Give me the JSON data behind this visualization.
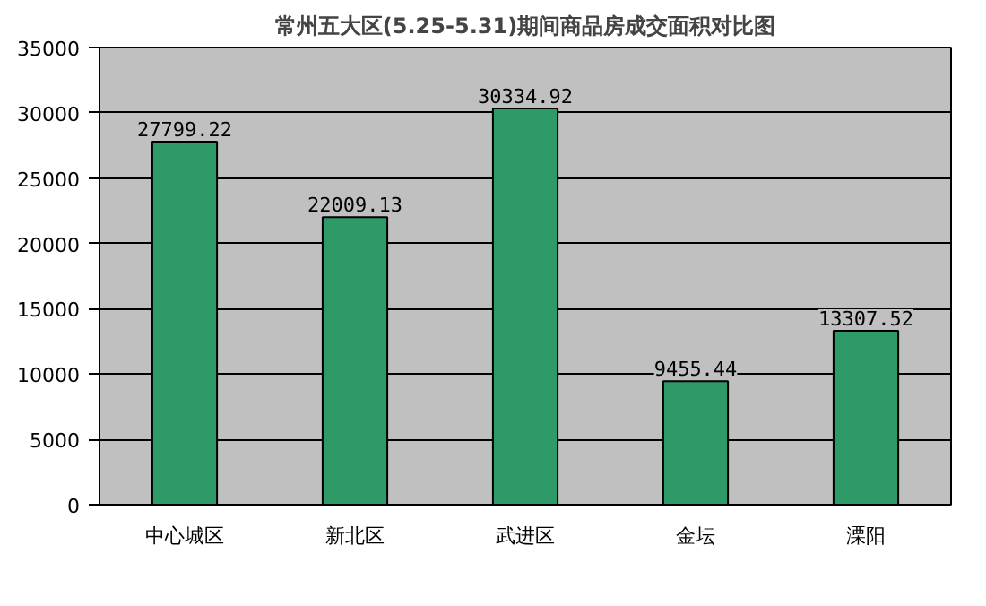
{
  "chart_data": {
    "type": "bar",
    "title": "常州五大区(5.25-5.31)期间商品房成交面积对比图",
    "categories": [
      "中心城区",
      "新北区",
      "武进区",
      "金坛",
      "溧阳"
    ],
    "values": [
      27799.22,
      22009.13,
      30334.92,
      9455.44,
      13307.52
    ],
    "color": "#2e9a68",
    "data_labels": true,
    "grid": "y",
    "ylim": [
      0,
      35000
    ],
    "yticks": [
      0,
      5000,
      10000,
      15000,
      20000,
      25000,
      30000,
      35000
    ]
  }
}
